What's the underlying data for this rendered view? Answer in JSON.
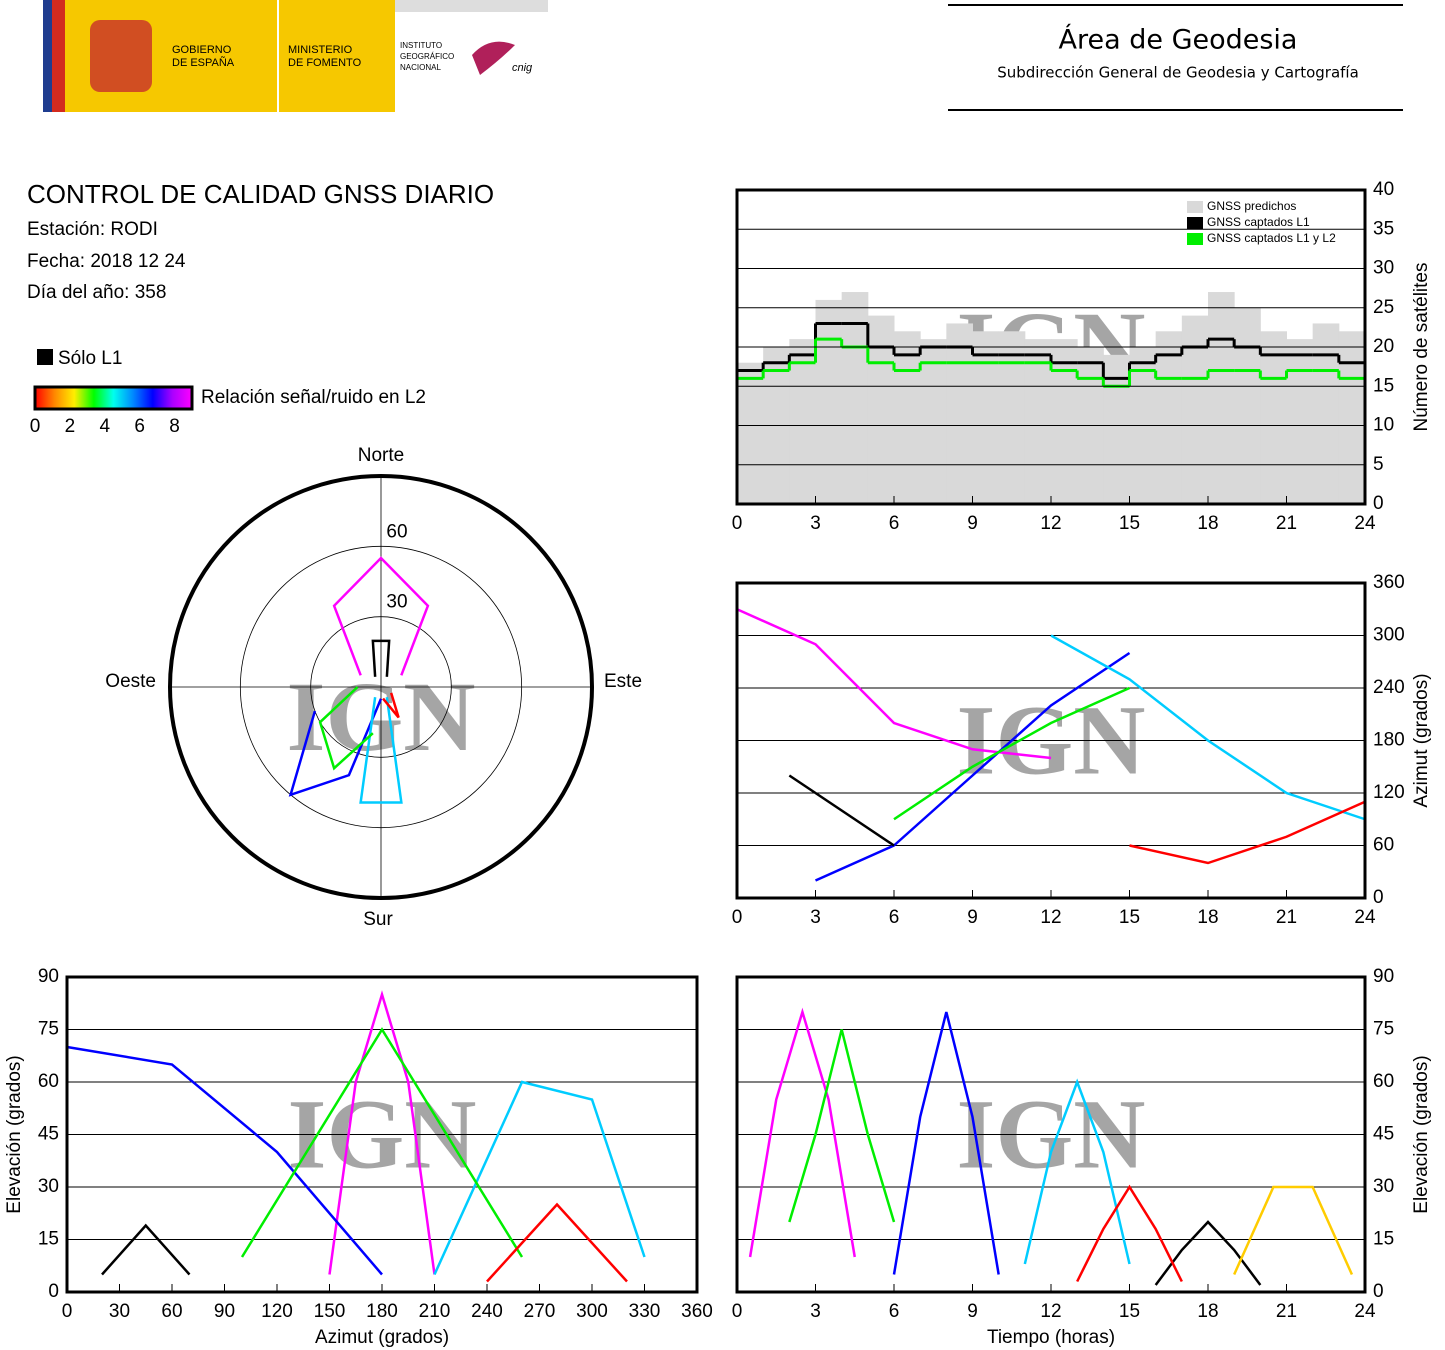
{
  "header": {
    "gov1": "GOBIERNO",
    "gov2": "DE ESPAÑA",
    "min1": "MINISTERIO",
    "min2": "DE FOMENTO",
    "ign1": "INSTITUTO",
    "ign2": "GEOGRÁFICO",
    "ign3": "NACIONAL",
    "cnig": "cnig",
    "area": "Área de Geodesia",
    "sub": "Subdirección General de Geodesia y Cartografía"
  },
  "info": {
    "title": "CONTROL DE CALIDAD GNSS DIARIO",
    "station": "Estación: RODI",
    "date": "Fecha: 2018 12 24",
    "doy": "Día del año: 358"
  },
  "legend": {
    "l1": "Sólo L1",
    "l1_color": "#000000",
    "colorbar": {
      "label": "Relación señal/ruido en L2",
      "lim": [
        0,
        9
      ],
      "ticks": [
        0,
        2,
        4,
        6,
        8
      ],
      "colors": [
        "#ff0000",
        "#ff8800",
        "#ffee00",
        "#00ff00",
        "#00ffee",
        "#0088ff",
        "#0000ff",
        "#aa00ff",
        "#ff00ff"
      ]
    }
  },
  "chart_data": [
    {
      "type": "step",
      "ylabel": "Número de satélites",
      "watermark": "IGN",
      "xlim": [
        0,
        24
      ],
      "xticks": [
        0,
        3,
        6,
        9,
        12,
        15,
        18,
        21,
        24
      ],
      "ylim": [
        0,
        40
      ],
      "yticks": [
        0,
        5,
        10,
        15,
        20,
        25,
        30,
        35,
        40
      ],
      "yaxis_side": "right",
      "grid": true,
      "x": [
        0,
        1,
        2,
        3,
        4,
        5,
        6,
        7,
        8,
        9,
        10,
        11,
        12,
        13,
        14,
        15,
        16,
        17,
        18,
        19,
        20,
        21,
        22,
        23
      ],
      "series": [
        {
          "name": "GNSS predichos",
          "color": "#d9d9d9",
          "fill": true,
          "values": [
            18,
            20,
            21,
            26,
            27,
            24,
            22,
            21,
            23,
            22,
            22,
            21,
            21,
            20,
            19,
            20,
            22,
            24,
            27,
            25,
            22,
            21,
            23,
            22
          ]
        },
        {
          "name": "GNSS captados L1",
          "color": "#000000",
          "values": [
            17,
            18,
            19,
            23,
            23,
            20,
            19,
            20,
            20,
            19,
            19,
            19,
            18,
            18,
            16,
            18,
            19,
            20,
            21,
            20,
            19,
            19,
            19,
            18
          ]
        },
        {
          "name": "GNSS captados L1 y L2",
          "color": "#00ee00",
          "values": [
            16,
            17,
            18,
            21,
            20,
            18,
            17,
            18,
            18,
            18,
            18,
            18,
            17,
            16,
            15,
            17,
            16,
            16,
            17,
            17,
            16,
            17,
            17,
            16
          ]
        }
      ]
    },
    {
      "type": "line",
      "ylabel": "Azimut (grados)",
      "watermark": "IGN",
      "xlim": [
        0,
        24
      ],
      "xticks": [
        0,
        3,
        6,
        9,
        12,
        15,
        18,
        21,
        24
      ],
      "ylim": [
        0,
        360
      ],
      "yticks": [
        0,
        60,
        120,
        180,
        240,
        300,
        360
      ],
      "yaxis_side": "right",
      "grid": true,
      "series": [
        {
          "color": "#ff00ff",
          "x": [
            0,
            3,
            6,
            9,
            12
          ],
          "values": [
            330,
            290,
            200,
            170,
            160
          ]
        },
        {
          "color": "#0000ff",
          "x": [
            3,
            6,
            9,
            12,
            15
          ],
          "values": [
            20,
            60,
            140,
            220,
            280
          ]
        },
        {
          "color": "#00ccff",
          "x": [
            12,
            15,
            18,
            21,
            24
          ],
          "values": [
            300,
            250,
            180,
            120,
            90
          ]
        },
        {
          "color": "#000000",
          "x": [
            2,
            4,
            6
          ],
          "values": [
            140,
            100,
            60
          ]
        },
        {
          "color": "#00ee00",
          "x": [
            6,
            9,
            12,
            15
          ],
          "values": [
            90,
            150,
            200,
            240
          ]
        },
        {
          "color": "#ff0000",
          "x": [
            15,
            18,
            21,
            24
          ],
          "values": [
            60,
            40,
            70,
            110
          ]
        }
      ]
    },
    {
      "type": "line",
      "xlabel": "Azimut (grados)",
      "ylabel": "Elevación (grados)",
      "watermark": "IGN",
      "xlim": [
        0,
        360
      ],
      "xticks": [
        0,
        30,
        60,
        90,
        120,
        150,
        180,
        210,
        240,
        270,
        300,
        330,
        360
      ],
      "ylim": [
        0,
        90
      ],
      "yticks": [
        0,
        15,
        30,
        45,
        60,
        75,
        90
      ],
      "yaxis_side": "left",
      "grid": true,
      "series": [
        {
          "color": "#ff00ff",
          "x": [
            150,
            165,
            180,
            195,
            210
          ],
          "values": [
            5,
            60,
            85,
            60,
            5
          ]
        },
        {
          "color": "#0000ff",
          "x": [
            0,
            60,
            120,
            180
          ],
          "values": [
            70,
            65,
            40,
            5
          ]
        },
        {
          "color": "#00ccff",
          "x": [
            210,
            260,
            300,
            330
          ],
          "values": [
            5,
            60,
            55,
            10
          ]
        },
        {
          "color": "#000000",
          "x": [
            20,
            45,
            70
          ],
          "values": [
            5,
            19,
            5
          ]
        },
        {
          "color": "#00ee00",
          "x": [
            100,
            180,
            260
          ],
          "values": [
            10,
            75,
            10
          ]
        },
        {
          "color": "#ff0000",
          "x": [
            240,
            280,
            320
          ],
          "values": [
            3,
            25,
            3
          ]
        }
      ]
    },
    {
      "type": "line",
      "xlabel": "Tiempo (horas)",
      "ylabel": "Elevación (grados)",
      "watermark": "IGN",
      "xlim": [
        0,
        24
      ],
      "xticks": [
        0,
        3,
        6,
        9,
        12,
        15,
        18,
        21,
        24
      ],
      "ylim": [
        0,
        90
      ],
      "yticks": [
        0,
        15,
        30,
        45,
        60,
        75,
        90
      ],
      "yaxis_side": "right",
      "grid": true,
      "series": [
        {
          "color": "#ff00ff",
          "x": [
            0.5,
            1.5,
            2.5,
            3.5,
            4.5
          ],
          "values": [
            10,
            55,
            80,
            55,
            10
          ]
        },
        {
          "color": "#0000ff",
          "x": [
            6,
            7,
            8,
            9,
            10
          ],
          "values": [
            5,
            50,
            80,
            50,
            5
          ]
        },
        {
          "color": "#00ccff",
          "x": [
            11,
            12,
            13,
            14,
            15
          ],
          "values": [
            8,
            40,
            60,
            40,
            8
          ]
        },
        {
          "color": "#000000",
          "x": [
            16,
            17,
            18,
            19,
            20
          ],
          "values": [
            2,
            12,
            20,
            12,
            2
          ]
        },
        {
          "color": "#00ee00",
          "x": [
            2,
            3,
            4,
            5,
            6
          ],
          "values": [
            20,
            45,
            75,
            45,
            20
          ]
        },
        {
          "color": "#ff0000",
          "x": [
            13,
            14,
            15,
            16,
            17
          ],
          "values": [
            3,
            18,
            30,
            18,
            3
          ]
        },
        {
          "color": "#ffcc00",
          "x": [
            19,
            20.5,
            22,
            23.5
          ],
          "values": [
            5,
            30,
            30,
            5
          ]
        }
      ]
    },
    {
      "type": "polar",
      "watermark": "IGN",
      "north": "Norte",
      "south": "Sur",
      "west": "Oeste",
      "east": "Este",
      "rlim": [
        90,
        0
      ],
      "rticks": [
        30,
        60
      ],
      "series": [
        {
          "color": "#ff00ff",
          "azimuth": [
            300,
            330,
            0,
            30,
            60
          ],
          "elevation": [
            10,
            40,
            55,
            40,
            10
          ]
        },
        {
          "color": "#0000ff",
          "azimuth": [
            180,
            200,
            220,
            250
          ],
          "elevation": [
            5,
            40,
            60,
            30
          ]
        },
        {
          "color": "#00ccff",
          "azimuth": [
            150,
            170,
            190,
            210
          ],
          "elevation": [
            5,
            50,
            50,
            5
          ]
        },
        {
          "color": "#00ee00",
          "azimuth": [
            270,
            240,
            210,
            190
          ],
          "elevation": [
            10,
            30,
            40,
            20
          ]
        },
        {
          "color": "#ff0000",
          "azimuth": [
            120,
            150,
            170
          ],
          "elevation": [
            5,
            15,
            5
          ]
        },
        {
          "color": "#000000",
          "azimuth": [
            330,
            350,
            10,
            30
          ],
          "elevation": [
            5,
            20,
            20,
            5
          ]
        }
      ]
    }
  ]
}
